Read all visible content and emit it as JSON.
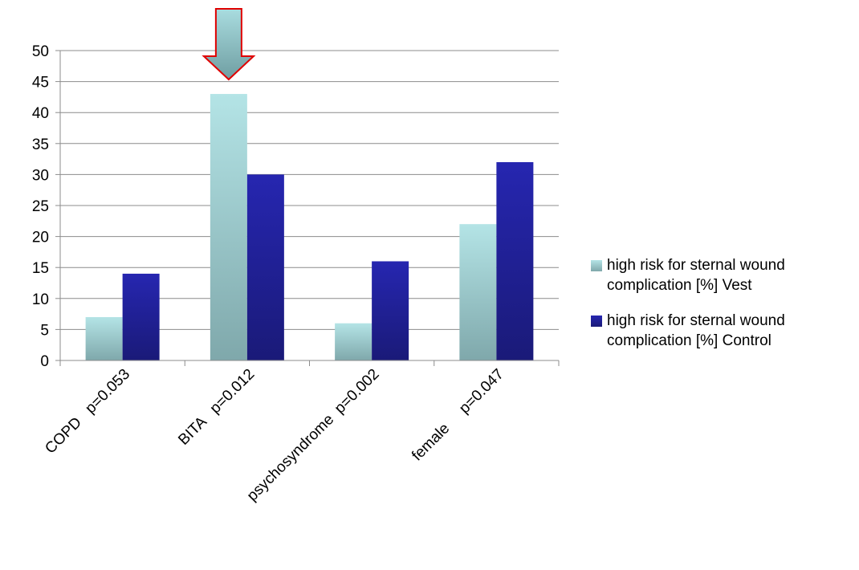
{
  "chart_data": {
    "type": "bar",
    "categories": [
      "COPD   p=0.053",
      "BITA   p=0.012",
      "psychosyndrome  p=0.002",
      "female     p=0.047"
    ],
    "series": [
      {
        "name": "high risk for sternal wound complication [%] Vest",
        "values": [
          7,
          43,
          6,
          22
        ],
        "color_top": "#b4e4e6",
        "color_bottom": "#7fa8ab"
      },
      {
        "name": "high risk for sternal wound complication [%] Control",
        "values": [
          14,
          30,
          16,
          32
        ],
        "color_top": "#2626b0",
        "color_bottom": "#1a1a78"
      }
    ],
    "ylim": [
      0,
      50
    ],
    "yticks": [
      0,
      5,
      10,
      15,
      20,
      25,
      30,
      35,
      40,
      45,
      50
    ],
    "title": "",
    "xlabel": "",
    "ylabel": "",
    "grid": true,
    "legend_position": "right",
    "annotation": {
      "type": "arrow",
      "target_category": "BITA   p=0.012",
      "color": "#e00000"
    }
  }
}
